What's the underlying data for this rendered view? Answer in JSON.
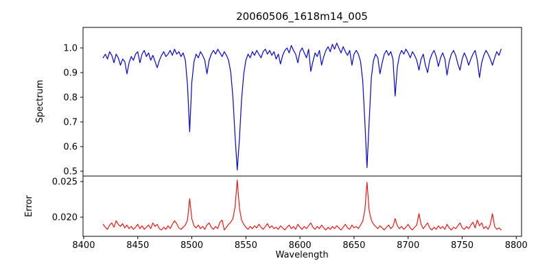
{
  "chart_data": {
    "type": "line",
    "title": "20060506_1618m14_005",
    "xlabel": "Wavelength",
    "grid": false,
    "legend": "none",
    "background_color": "#ffffff",
    "axis_color": "#000000",
    "x": {
      "start": 8418,
      "step": 2,
      "lim": [
        8399.4,
        8804.9
      ],
      "tick_values": [
        8400,
        8450,
        8500,
        8550,
        8600,
        8650,
        8700,
        8750,
        8800
      ],
      "tick_labels": [
        "8400",
        "8450",
        "8500",
        "8550",
        "8600",
        "8650",
        "8700",
        "8750",
        "8800"
      ]
    },
    "panels": [
      {
        "id": "top",
        "ylabel": "Spectrum",
        "ylim": [
          0.4805,
          1.0833
        ],
        "ytick_values": [
          1.0,
          0.9,
          0.8,
          0.7,
          0.6,
          0.5
        ],
        "ytick_labels": [
          "1.0",
          "0.9",
          "0.8",
          "0.7",
          "0.6",
          "0.5"
        ],
        "series": {
          "name": "spectrum",
          "color": "#0000dd",
          "features": "Ca II absorption lines near 8498, 8542, 8662",
          "values": [
            0.96,
            0.975,
            0.955,
            0.985,
            0.97,
            0.94,
            0.975,
            0.96,
            0.93,
            0.955,
            0.945,
            0.895,
            0.94,
            0.965,
            0.95,
            0.975,
            0.985,
            0.94,
            0.975,
            0.99,
            0.965,
            0.98,
            0.95,
            0.97,
            0.945,
            0.92,
            0.95,
            0.97,
            0.985,
            0.965,
            0.975,
            0.99,
            0.97,
            0.995,
            0.975,
            0.985,
            0.965,
            0.98,
            0.95,
            0.85,
            0.66,
            0.86,
            0.945,
            0.975,
            0.96,
            0.985,
            0.97,
            0.95,
            0.895,
            0.95,
            0.975,
            0.99,
            0.975,
            0.995,
            0.98,
            0.965,
            0.985,
            0.97,
            0.95,
            0.9,
            0.8,
            0.64,
            0.505,
            0.63,
            0.79,
            0.895,
            0.95,
            0.975,
            0.96,
            0.985,
            0.97,
            0.99,
            0.975,
            0.96,
            0.985,
            0.995,
            0.975,
            0.99,
            0.97,
            0.985,
            0.955,
            0.975,
            0.935,
            0.97,
            0.99,
            1.0,
            0.98,
            1.01,
            0.99,
            0.975,
            0.94,
            0.985,
            1.0,
            0.98,
            0.96,
            0.995,
            0.905,
            0.945,
            0.98,
            0.965,
            0.99,
            0.93,
            0.965,
            0.99,
            1.005,
            0.985,
            1.015,
            0.995,
            1.02,
            1.0,
            0.98,
            1.005,
            0.985,
            0.97,
            0.99,
            0.93,
            0.975,
            0.99,
            0.975,
            0.945,
            0.87,
            0.7,
            0.515,
            0.705,
            0.88,
            0.95,
            0.975,
            0.96,
            0.895,
            0.94,
            0.975,
            0.99,
            0.97,
            0.985,
            0.955,
            0.805,
            0.92,
            0.97,
            0.99,
            0.975,
            0.995,
            0.98,
            0.96,
            0.985,
            0.97,
            0.95,
            0.91,
            0.955,
            0.975,
            0.93,
            0.9,
            0.95,
            0.975,
            0.99,
            0.965,
            0.925,
            0.96,
            0.98,
            0.955,
            0.89,
            0.945,
            0.975,
            0.99,
            0.97,
            0.935,
            0.91,
            0.955,
            0.98,
            0.96,
            0.93,
            0.955,
            0.975,
            0.99,
            0.95,
            0.88,
            0.94,
            0.97,
            0.99,
            0.975,
            0.955,
            0.93,
            0.96,
            0.985,
            0.97,
            0.995
          ]
        }
      },
      {
        "id": "bottom",
        "ylabel": "Error",
        "ylim": [
          0.01732,
          0.02577
        ],
        "ytick_values": [
          0.025,
          0.02
        ],
        "ytick_labels": [
          "0.025",
          "0.020"
        ],
        "series": {
          "name": "error",
          "color": "#ff0000",
          "features": "error peaks at the Ca II line cores 8498, 8542, 8662",
          "values": [
            0.019,
            0.0186,
            0.0183,
            0.0189,
            0.0192,
            0.0186,
            0.0195,
            0.019,
            0.0187,
            0.0191,
            0.0185,
            0.0189,
            0.0184,
            0.0187,
            0.0183,
            0.0186,
            0.019,
            0.0184,
            0.0188,
            0.0183,
            0.0186,
            0.0189,
            0.0184,
            0.0192,
            0.0187,
            0.019,
            0.0184,
            0.0182,
            0.0186,
            0.0183,
            0.0188,
            0.0184,
            0.019,
            0.0195,
            0.0191,
            0.0185,
            0.0183,
            0.0186,
            0.0189,
            0.0196,
            0.0226,
            0.0198,
            0.0188,
            0.0185,
            0.0189,
            0.0184,
            0.0187,
            0.0183,
            0.0189,
            0.0192,
            0.0186,
            0.0183,
            0.0187,
            0.0184,
            0.0193,
            0.0196,
            0.0182,
            0.0186,
            0.019,
            0.0193,
            0.0198,
            0.0215,
            0.0252,
            0.0213,
            0.0196,
            0.019,
            0.0186,
            0.0183,
            0.0187,
            0.0184,
            0.0188,
            0.0185,
            0.019,
            0.0186,
            0.0183,
            0.0187,
            0.0191,
            0.0185,
            0.0188,
            0.0184,
            0.0186,
            0.0183,
            0.0188,
            0.0185,
            0.0182,
            0.0186,
            0.0189,
            0.0184,
            0.0187,
            0.0183,
            0.019,
            0.0186,
            0.0183,
            0.0187,
            0.0184,
            0.0188,
            0.0192,
            0.0186,
            0.0183,
            0.0187,
            0.0184,
            0.0189,
            0.0185,
            0.0182,
            0.0186,
            0.0183,
            0.0187,
            0.0184,
            0.0188,
            0.0185,
            0.0182,
            0.0186,
            0.019,
            0.0185,
            0.0183,
            0.0189,
            0.0185,
            0.0187,
            0.0184,
            0.0189,
            0.0194,
            0.021,
            0.0249,
            0.0209,
            0.0196,
            0.019,
            0.0187,
            0.0184,
            0.0188,
            0.0185,
            0.0182,
            0.0186,
            0.0189,
            0.0184,
            0.0187,
            0.0198,
            0.0188,
            0.0184,
            0.0187,
            0.0183,
            0.0186,
            0.019,
            0.0185,
            0.0182,
            0.0186,
            0.0189,
            0.0205,
            0.019,
            0.0184,
            0.0188,
            0.0192,
            0.0185,
            0.0182,
            0.0186,
            0.0183,
            0.0188,
            0.0184,
            0.0187,
            0.0183,
            0.019,
            0.0185,
            0.0182,
            0.0186,
            0.0184,
            0.0188,
            0.0192,
            0.0185,
            0.0183,
            0.0187,
            0.0184,
            0.0189,
            0.0193,
            0.0185,
            0.0196,
            0.0188,
            0.0192,
            0.0184,
            0.0187,
            0.0183,
            0.019,
            0.0205,
            0.0187,
            0.0183,
            0.0185,
            0.0182
          ]
        }
      }
    ]
  }
}
